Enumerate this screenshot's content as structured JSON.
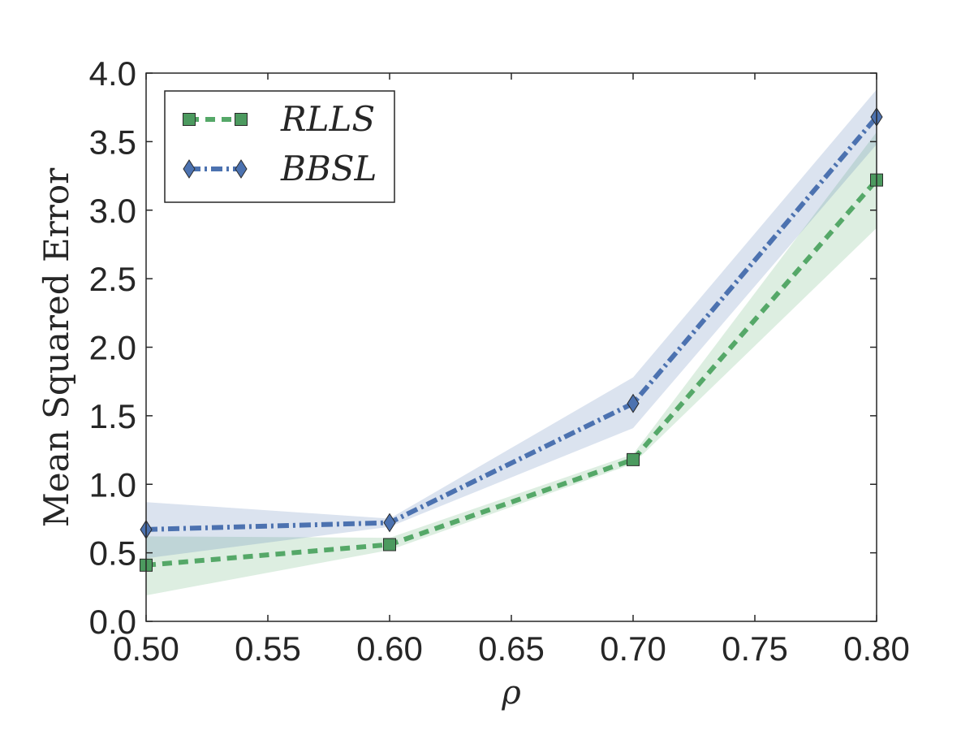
{
  "chart_data": {
    "type": "line",
    "title": "",
    "xlabel": "ρ",
    "ylabel": "Mean Squared Error",
    "xlim": [
      0.5,
      0.8
    ],
    "ylim": [
      0.0,
      4.0
    ],
    "xticks": [
      0.5,
      0.55,
      0.6,
      0.65,
      0.7,
      0.75,
      0.8
    ],
    "xtick_labels": [
      "0.50",
      "0.55",
      "0.60",
      "0.65",
      "0.70",
      "0.75",
      "0.80"
    ],
    "yticks": [
      0.0,
      0.5,
      1.0,
      1.5,
      2.0,
      2.5,
      3.0,
      3.5,
      4.0
    ],
    "ytick_labels": [
      "0.0",
      "0.5",
      "1.0",
      "1.5",
      "2.0",
      "2.5",
      "3.0",
      "3.5",
      "4.0"
    ],
    "grid": false,
    "legend_position": "top-left",
    "x": [
      0.5,
      0.6,
      0.7,
      0.8
    ],
    "series": [
      {
        "name": "RLLS",
        "marker": "square",
        "line_style": "dashed",
        "color": "#55A868",
        "marker_color": "#4C9A5F",
        "values": [
          0.41,
          0.56,
          1.18,
          3.22
        ],
        "band_lower": [
          0.19,
          0.52,
          1.15,
          2.87
        ],
        "band_upper": [
          0.62,
          0.61,
          1.22,
          3.57
        ]
      },
      {
        "name": "BBSL",
        "marker": "diamond",
        "line_style": "dashdot",
        "color": "#4C72B0",
        "marker_color": "#4C72B0",
        "values": [
          0.67,
          0.72,
          1.59,
          3.68
        ],
        "band_lower": [
          0.46,
          0.69,
          1.41,
          3.48
        ],
        "band_upper": [
          0.87,
          0.75,
          1.78,
          3.88
        ]
      }
    ]
  }
}
